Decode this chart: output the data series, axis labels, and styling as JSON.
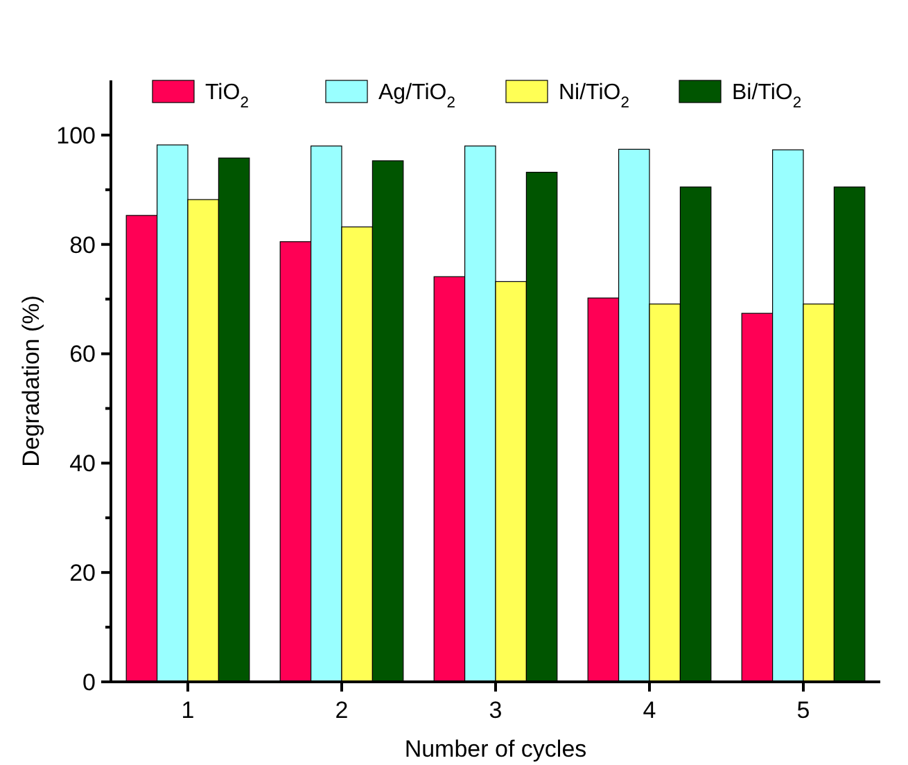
{
  "chart_data": {
    "type": "bar",
    "xlabel": "Number of cycles",
    "ylabel": "Degradation (%)",
    "categories": [
      "1",
      "2",
      "3",
      "4",
      "5"
    ],
    "series": [
      {
        "name": "TiO$_{2}$",
        "color": "#ff0055",
        "values": [
          85.3,
          80.5,
          74.1,
          70.2,
          67.4
        ]
      },
      {
        "name": "Ag/TiO$_{2}$",
        "color": "#99ffff",
        "values": [
          98.2,
          98,
          98,
          97.4,
          97.3
        ]
      },
      {
        "name": "Ni/TiO$_{2}$",
        "color": "#ffff55",
        "values": [
          88.2,
          83.2,
          73.2,
          69.1,
          69.1
        ]
      },
      {
        "name": "Bi/TiO$_{2}$",
        "color": "#005500",
        "values": [
          95.8,
          95.3,
          93.2,
          90.5,
          90.5
        ]
      }
    ],
    "ylim": [
      0,
      110
    ],
    "yticks": [
      0,
      {
        "value": 10,
        "label": null
      },
      20,
      {
        "value": 30,
        "label": null
      },
      40,
      {
        "value": 50,
        "label": null
      },
      60,
      {
        "value": 70,
        "label": null
      },
      80,
      {
        "value": 90,
        "label": null
      },
      100
    ],
    "legend": "top",
    "grid": false
  }
}
